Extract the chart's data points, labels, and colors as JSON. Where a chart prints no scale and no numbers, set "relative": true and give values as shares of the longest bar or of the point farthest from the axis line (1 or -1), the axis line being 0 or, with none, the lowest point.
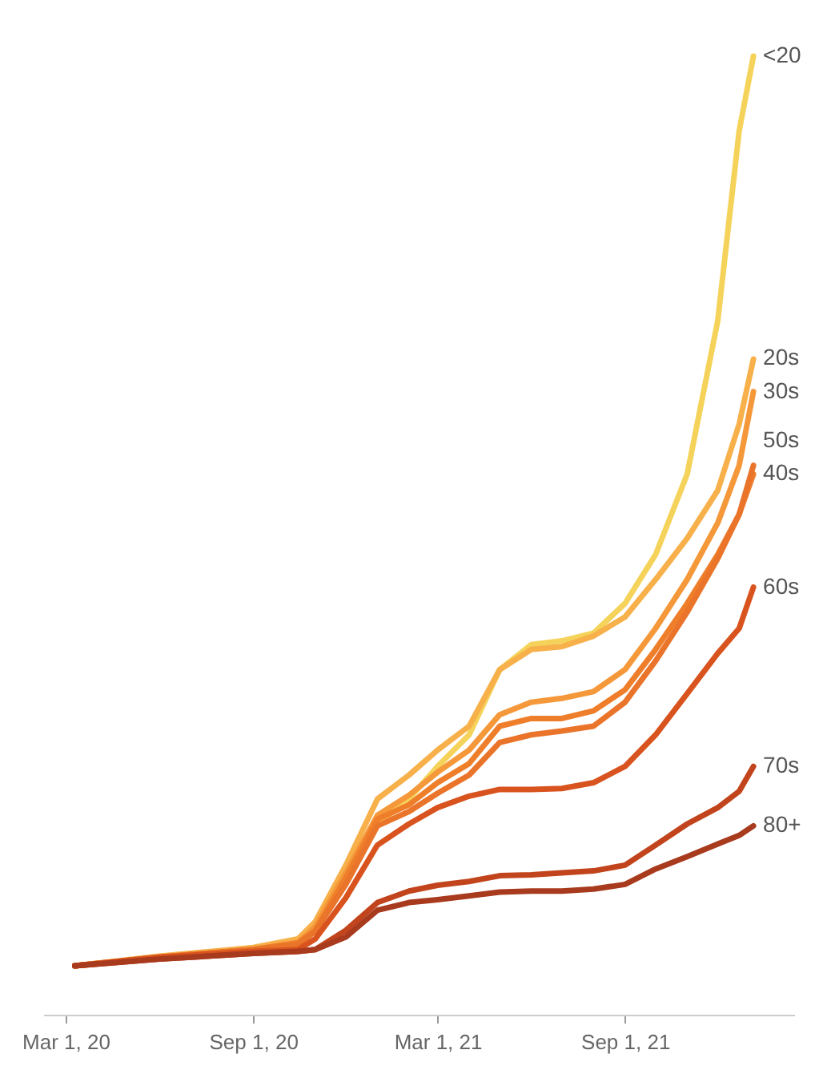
{
  "chart_data": {
    "type": "line",
    "relative": true,
    "x": [
      "2020-03-10",
      "2020-06-01",
      "2020-09-01",
      "2020-10-15",
      "2020-11-01",
      "2020-12-01",
      "2021-01-01",
      "2021-02-01",
      "2021-03-01",
      "2021-04-01",
      "2021-05-01",
      "2021-06-01",
      "2021-07-01",
      "2021-08-01",
      "2021-09-01",
      "2021-10-01",
      "2021-11-01",
      "2021-12-01",
      "2021-12-22",
      "2022-01-05"
    ],
    "xlim": [
      "2020-02-08",
      "2022-02-14"
    ],
    "xticks": [
      {
        "value": "2020-03-01",
        "label": "Mar 1, 20"
      },
      {
        "value": "2020-09-01",
        "label": "Sep 1, 20"
      },
      {
        "value": "2021-03-01",
        "label": "Mar 1, 21"
      },
      {
        "value": "2021-09-01",
        "label": "Sep 1, 21"
      }
    ],
    "legend": false,
    "series": [
      {
        "name": "<20",
        "color": "#f5d35a",
        "values": [
          0.051,
          0.06,
          0.068,
          0.075,
          0.088,
          0.139,
          0.199,
          0.225,
          0.259,
          0.292,
          0.36,
          0.386,
          0.39,
          0.398,
          0.429,
          0.48,
          0.564,
          0.724,
          0.922,
          1
        ]
      },
      {
        "name": "20s",
        "color": "#f7b04a",
        "values": [
          0.051,
          0.061,
          0.07,
          0.079,
          0.097,
          0.156,
          0.225,
          0.25,
          0.276,
          0.301,
          0.36,
          0.381,
          0.384,
          0.395,
          0.415,
          0.454,
          0.497,
          0.547,
          0.616,
          0.684
        ]
      },
      {
        "name": "30s",
        "color": "#f5983a",
        "values": [
          0.051,
          0.06,
          0.068,
          0.075,
          0.092,
          0.148,
          0.208,
          0.229,
          0.253,
          0.276,
          0.313,
          0.326,
          0.33,
          0.337,
          0.36,
          0.403,
          0.454,
          0.513,
          0.573,
          0.65
        ]
      },
      {
        "name": "40s",
        "color": "#ef7e2a",
        "values": [
          0.051,
          0.06,
          0.068,
          0.075,
          0.088,
          0.143,
          0.204,
          0.219,
          0.242,
          0.262,
          0.301,
          0.309,
          0.309,
          0.317,
          0.339,
          0.381,
          0.429,
          0.48,
          0.522,
          0.564
        ]
      },
      {
        "name": "50s",
        "color": "#e9742a",
        "values": [
          0.051,
          0.06,
          0.068,
          0.073,
          0.087,
          0.136,
          0.197,
          0.212,
          0.231,
          0.25,
          0.284,
          0.292,
          0.296,
          0.301,
          0.326,
          0.369,
          0.42,
          0.476,
          0.522,
          0.573
        ]
      },
      {
        "name": "60s",
        "color": "#d9531e",
        "values": [
          0.051,
          0.06,
          0.066,
          0.068,
          0.079,
          0.122,
          0.177,
          0.199,
          0.216,
          0.228,
          0.235,
          0.235,
          0.236,
          0.242,
          0.259,
          0.292,
          0.335,
          0.377,
          0.403,
          0.446
        ]
      },
      {
        "name": "70s",
        "color": "#c2441c",
        "values": [
          0.051,
          0.058,
          0.064,
          0.066,
          0.068,
          0.088,
          0.117,
          0.129,
          0.135,
          0.139,
          0.145,
          0.146,
          0.148,
          0.15,
          0.156,
          0.177,
          0.199,
          0.216,
          0.233,
          0.259
        ]
      },
      {
        "name": "80+",
        "color": "#a83a1e",
        "values": [
          0.051,
          0.058,
          0.064,
          0.066,
          0.068,
          0.081,
          0.109,
          0.117,
          0.12,
          0.124,
          0.128,
          0.129,
          0.129,
          0.131,
          0.136,
          0.152,
          0.165,
          0.178,
          0.187,
          0.197
        ]
      }
    ]
  }
}
